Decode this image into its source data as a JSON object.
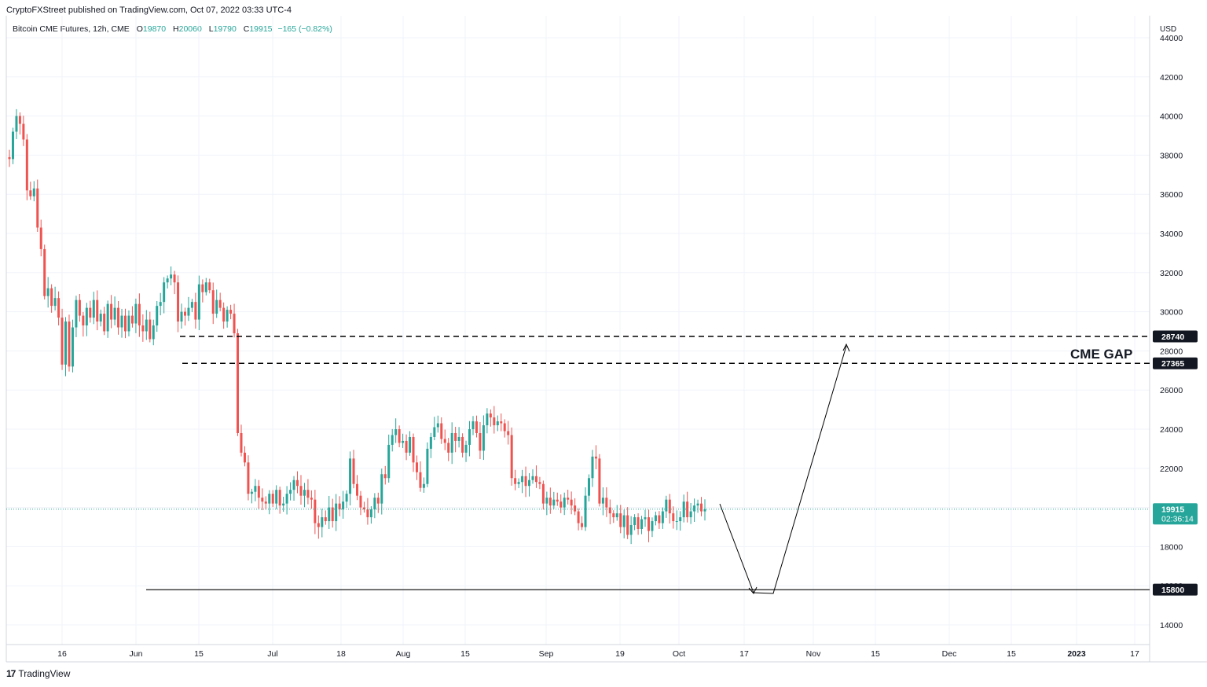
{
  "header": {
    "published": "CryptoFXStreet published on TradingView.com, Oct 07, 2022 03:33 UTC-4"
  },
  "symbol": {
    "name": "Bitcoin CME Futures, 12h, CME",
    "o_label": "O",
    "o": "19870",
    "h_label": "H",
    "h": "20060",
    "l_label": "L",
    "l": "19790",
    "c_label": "C",
    "c": "19915",
    "change": "−165 (−0.82%)"
  },
  "price_axis": {
    "currency": "USD",
    "ticks": [
      "44000",
      "42000",
      "40000",
      "38000",
      "36000",
      "34000",
      "32000",
      "30000",
      "28000",
      "26000",
      "24000",
      "22000",
      "20000",
      "18000",
      "16000",
      "14000"
    ],
    "current_price": "19915",
    "countdown": "02:36:14"
  },
  "time_axis": {
    "ticks": [
      "16",
      "Jun",
      "15",
      "Jul",
      "18",
      "Aug",
      "15",
      "Sep",
      "19",
      "Oct",
      "17",
      "Nov",
      "15",
      "Dec",
      "15",
      "2023",
      "17"
    ]
  },
  "annotations": {
    "gap_label": "CME GAP",
    "level_high": "28740",
    "level_low": "27365",
    "support": "15800"
  },
  "footer": {
    "brand": "TradingView"
  },
  "colors": {
    "up": "#26a69a",
    "down": "#ef5350",
    "grid": "#f0f3fa",
    "text": "#131722",
    "line": "#000000"
  },
  "chart_data": {
    "type": "candlestick",
    "title": "Bitcoin CME Futures, 12h, CME",
    "ylabel": "USD",
    "ylim": [
      13200,
      44500
    ],
    "grid": true,
    "levels": [
      28740,
      27365,
      15800
    ],
    "closes": [
      37800,
      39200,
      40000,
      39600,
      38800,
      36200,
      35900,
      36300,
      34300,
      33200,
      30800,
      31200,
      30300,
      30700,
      29700,
      27300,
      29500,
      27200,
      29200,
      30600,
      29800,
      29300,
      30200,
      29700,
      30600,
      29500,
      29900,
      29000,
      30400,
      29600,
      30200,
      29200,
      29800,
      29000,
      29800,
      29400,
      30400,
      29300,
      29000,
      29600,
      28600,
      29300,
      30300,
      30500,
      31500,
      31700,
      31900,
      31500,
      29500,
      30000,
      29800,
      30200,
      30500,
      29600,
      31400,
      31000,
      31500,
      31100,
      29900,
      30600,
      30200,
      29500,
      30100,
      29900,
      28900,
      23800,
      22800,
      22300,
      20700,
      20800,
      21100,
      20500,
      20300,
      20200,
      20700,
      20200,
      20900,
      20100,
      20200,
      20700,
      20900,
      21400,
      21100,
      20600,
      20900,
      20500,
      20400,
      19200,
      19000,
      19500,
      19300,
      20000,
      19300,
      20200,
      19900,
      20300,
      20700,
      22500,
      21200,
      20600,
      20000,
      19900,
      19500,
      19900,
      20500,
      20200,
      21700,
      21500,
      23200,
      23700,
      24000,
      23300,
      23400,
      22800,
      23600,
      22300,
      21800,
      21000,
      21200,
      23000,
      23600,
      24100,
      24300,
      23500,
      23300,
      22800,
      23800,
      23400,
      23600,
      22800,
      23200,
      24000,
      24400,
      23800,
      22900,
      24200,
      24800,
      24600,
      24200,
      24400,
      24300,
      23900,
      23700,
      21500,
      21200,
      21300,
      21600,
      21100,
      21400,
      21600,
      21300,
      21200,
      20200,
      20500,
      20100,
      20400,
      20300,
      20000,
      20500,
      20400,
      20100,
      19800,
      19200,
      19000,
      20600,
      21500,
      22600,
      22500,
      20200,
      20500,
      20000,
      19700,
      19500,
      19700,
      19000,
      19600,
      18600,
      19100,
      19500,
      18900,
      19400,
      19500,
      18800,
      19300,
      19600,
      19200,
      19800,
      20400,
      19700,
      19300,
      19300,
      19500,
      20300,
      19500,
      19800,
      20100,
      20200,
      19800,
      19915
    ]
  }
}
